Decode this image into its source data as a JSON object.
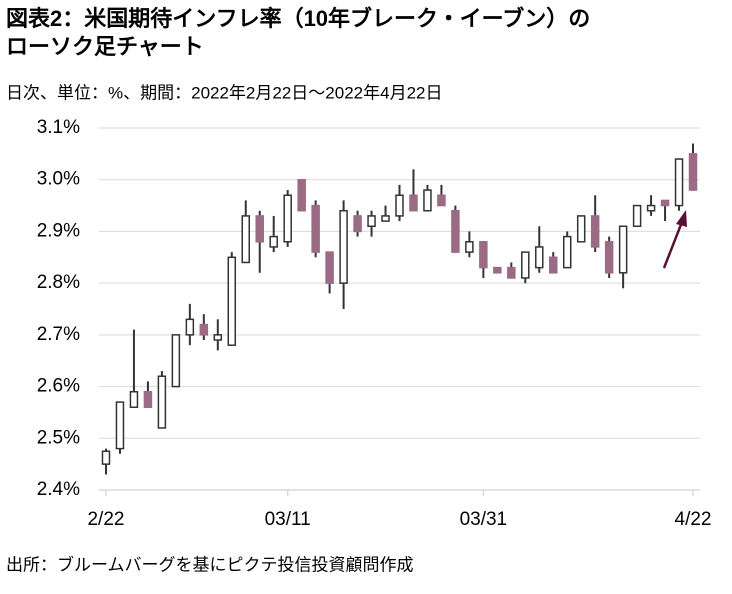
{
  "chart_data": {
    "type": "candlestick",
    "title": [
      "図表2：米国期待インフレ率（10年ブレーク・イーブン）の",
      "ローソク足チャート"
    ],
    "subtitle": "日次、単位：%、期間：2022年2月22日～2022年4月22日",
    "source": "出所：ブルームバーグを基にピクテ投信投資顧問作成",
    "categories": [
      "2/22",
      null,
      null,
      null,
      null,
      null,
      null,
      null,
      null,
      null,
      null,
      null,
      null,
      "03/11",
      null,
      null,
      null,
      null,
      null,
      null,
      null,
      null,
      null,
      null,
      null,
      null,
      null,
      "03/31",
      null,
      null,
      null,
      null,
      null,
      null,
      null,
      null,
      null,
      null,
      null,
      null,
      null,
      null,
      "4/22"
    ],
    "open": [
      2.45,
      2.48,
      2.56,
      2.59,
      2.52,
      2.6,
      2.7,
      2.72,
      2.69,
      2.68,
      2.84,
      2.93,
      2.87,
      2.88,
      3.0,
      2.95,
      2.86,
      2.8,
      2.93,
      2.91,
      2.92,
      2.93,
      2.97,
      2.94,
      2.97,
      2.94,
      2.86,
      2.88,
      2.83,
      2.83,
      2.81,
      2.83,
      2.85,
      2.83,
      2.88,
      2.93,
      2.88,
      2.82,
      2.91,
      2.94,
      2.96,
      2.95,
      3.05
    ],
    "high": [
      2.48,
      2.57,
      2.71,
      2.61,
      2.63,
      2.7,
      2.76,
      2.74,
      2.73,
      2.86,
      2.96,
      2.94,
      2.93,
      2.98,
      3.0,
      2.96,
      2.86,
      2.96,
      2.94,
      2.94,
      2.95,
      2.99,
      3.02,
      2.99,
      2.99,
      2.95,
      2.9,
      2.88,
      2.83,
      2.84,
      2.86,
      2.91,
      2.86,
      2.9,
      2.93,
      2.97,
      2.89,
      2.91,
      2.95,
      2.97,
      2.96,
      3.04,
      3.07
    ],
    "low": [
      2.43,
      2.47,
      2.56,
      2.56,
      2.52,
      2.6,
      2.68,
      2.69,
      2.67,
      2.68,
      2.84,
      2.82,
      2.86,
      2.87,
      2.94,
      2.85,
      2.78,
      2.75,
      2.89,
      2.89,
      2.92,
      2.92,
      2.94,
      2.94,
      2.95,
      2.86,
      2.85,
      2.81,
      2.82,
      2.81,
      2.8,
      2.82,
      2.82,
      2.83,
      2.88,
      2.86,
      2.81,
      2.79,
      2.91,
      2.93,
      2.92,
      2.94,
      2.98
    ],
    "close": [
      2.475,
      2.57,
      2.59,
      2.56,
      2.62,
      2.7,
      2.73,
      2.7,
      2.7,
      2.85,
      2.93,
      2.88,
      2.89,
      2.97,
      2.94,
      2.86,
      2.8,
      2.94,
      2.9,
      2.93,
      2.93,
      2.97,
      2.94,
      2.98,
      2.95,
      2.86,
      2.88,
      2.83,
      2.82,
      2.81,
      2.86,
      2.87,
      2.82,
      2.89,
      2.93,
      2.87,
      2.82,
      2.91,
      2.95,
      2.95,
      2.95,
      3.04,
      2.98
    ],
    "up_color": "#ffffff",
    "down_color": "#9b6b85",
    "ylim": [
      2.4,
      3.1
    ],
    "yticks": [
      {
        "value": 2.4,
        "label": "2.4%"
      },
      {
        "value": 2.5,
        "label": "2.5%"
      },
      {
        "value": 2.6,
        "label": "2.6%"
      },
      {
        "value": 2.7,
        "label": "2.7%"
      },
      {
        "value": 2.8,
        "label": "2.8%"
      },
      {
        "value": 2.9,
        "label": "2.9%"
      },
      {
        "value": 3.0,
        "label": "3.0%"
      },
      {
        "value": 3.1,
        "label": "3.1%"
      }
    ],
    "grid": true
  }
}
